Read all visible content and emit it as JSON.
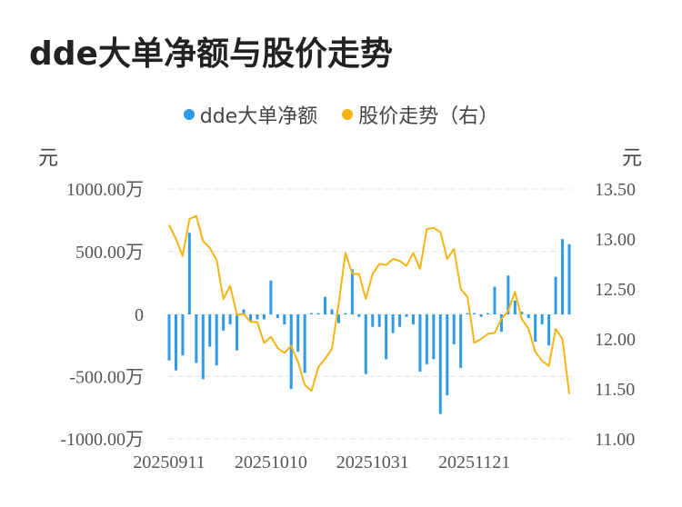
{
  "title": "dde大单净额与股价走势",
  "legend": {
    "dde_label": "dde大单净额",
    "price_label": "股价走势（右）"
  },
  "colors": {
    "bar": "#2f9ae8",
    "line": "#f5b414",
    "grid": "#e6e6e6",
    "zero": "#e6e6e6"
  },
  "left_unit": "元",
  "right_unit": "元",
  "chart_data": {
    "type": "bar+line",
    "x_ticks": [
      "20250911",
      "20251010",
      "20251031",
      "20251121"
    ],
    "x_tick_index": [
      0,
      15,
      30,
      45
    ],
    "left_axis": {
      "ticks": [
        "1000.00万",
        "500.00万",
        "0",
        "-500.00万",
        "-1000.00万"
      ],
      "tick_values": [
        1000,
        500,
        0,
        -500,
        -1000
      ],
      "ylim": [
        -1000,
        1000
      ],
      "unit": "万元"
    },
    "right_axis": {
      "ticks": [
        "13.50",
        "13.00",
        "12.50",
        "12.00",
        "11.50",
        "11.00"
      ],
      "tick_values": [
        13.5,
        13.0,
        12.5,
        12.0,
        11.5,
        11.0
      ],
      "ylim": [
        11.0,
        13.5
      ]
    },
    "series": [
      {
        "name": "dde大单净额",
        "kind": "bar",
        "axis": "left",
        "values": [
          -370,
          -450,
          -330,
          650,
          -390,
          -520,
          -260,
          -410,
          -130,
          -80,
          -290,
          40,
          -60,
          -40,
          -40,
          270,
          -30,
          -80,
          -600,
          -300,
          -470,
          10,
          10,
          140,
          40,
          -70,
          10,
          360,
          -20,
          -480,
          -100,
          -100,
          -360,
          -150,
          -100,
          -20,
          -80,
          -460,
          -400,
          -360,
          -800,
          -650,
          -240,
          -430,
          10,
          10,
          -20,
          10,
          220,
          -140,
          310,
          110,
          20,
          -30,
          -220,
          -80,
          -250,
          300,
          600,
          560
        ]
      },
      {
        "name": "股价走势（右）",
        "kind": "line",
        "axis": "right",
        "values": [
          13.14,
          13.0,
          12.83,
          13.2,
          13.23,
          12.98,
          12.91,
          12.79,
          12.4,
          12.53,
          12.24,
          12.25,
          12.17,
          12.17,
          11.96,
          12.02,
          11.91,
          11.86,
          11.93,
          11.77,
          11.54,
          11.48,
          11.72,
          11.8,
          11.9,
          12.35,
          12.86,
          12.65,
          12.65,
          12.4,
          12.65,
          12.75,
          12.74,
          12.8,
          12.78,
          12.73,
          12.86,
          12.7,
          13.1,
          13.11,
          13.07,
          12.8,
          12.9,
          12.5,
          12.42,
          11.96,
          12.0,
          12.05,
          12.06,
          12.2,
          12.28,
          12.47,
          12.2,
          12.1,
          11.87,
          11.78,
          11.73,
          12.1,
          12.0,
          11.45
        ]
      }
    ]
  }
}
